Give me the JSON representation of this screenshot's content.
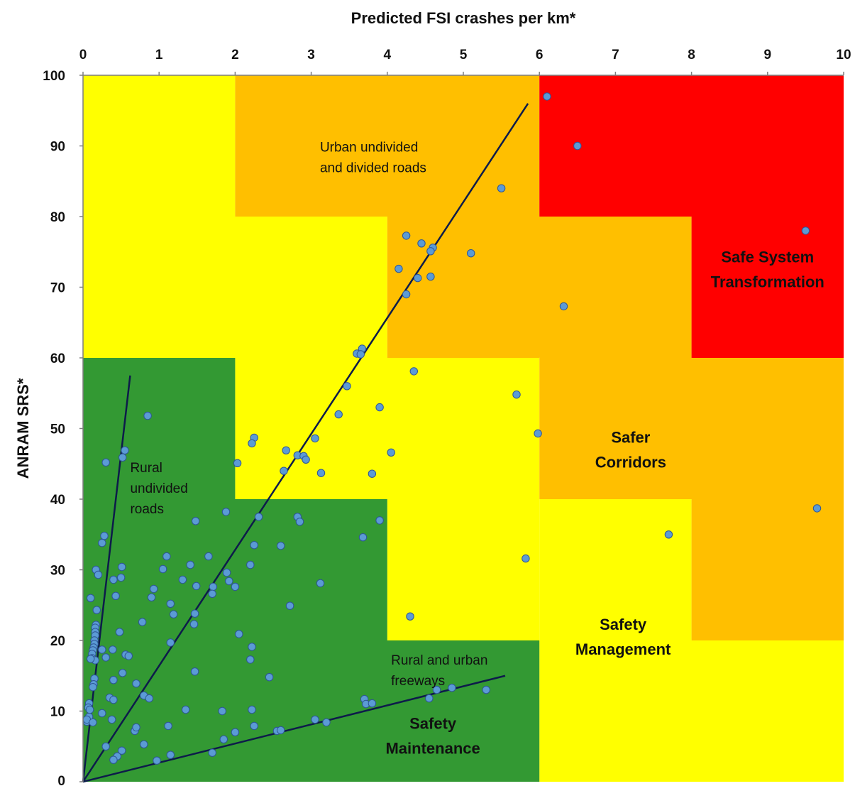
{
  "chart_data": {
    "type": "scatter",
    "x_axis": {
      "label": "Predicted FSI crashes per km*",
      "range": [
        0,
        10
      ],
      "ticks": [
        0,
        1,
        2,
        3,
        4,
        5,
        6,
        7,
        8,
        9,
        10
      ],
      "position": "top"
    },
    "y_axis": {
      "label": "ANRAM SRS*",
      "range": [
        0,
        100
      ],
      "ticks": [
        0,
        10,
        20,
        30,
        40,
        50,
        60,
        70,
        80,
        90,
        100
      ]
    },
    "grid": false,
    "legend": "none",
    "colors": {
      "green": "#339933",
      "yellow": "#ffff00",
      "orange": "#ffbf00",
      "red": "#ff0000",
      "point_fill": "#5b9bd5",
      "point_stroke": "#2e5597",
      "trend_line": "#0d1b4a"
    },
    "zones": [
      {
        "color": "yellow",
        "region": [
          [
            0,
            60
          ],
          [
            0,
            100
          ],
          [
            2,
            100
          ],
          [
            2,
            80
          ],
          [
            4,
            80
          ],
          [
            4,
            60
          ],
          [
            6,
            60
          ],
          [
            6,
            20
          ],
          [
            4,
            20
          ],
          [
            4,
            40
          ],
          [
            2,
            40
          ],
          [
            2,
            60
          ]
        ]
      },
      {
        "color": "yellow",
        "region": [
          [
            6,
            0
          ],
          [
            10,
            0
          ],
          [
            10,
            20
          ],
          [
            8,
            20
          ],
          [
            8,
            40
          ],
          [
            6,
            40
          ]
        ]
      },
      {
        "color": "orange",
        "region": [
          [
            2,
            80
          ],
          [
            2,
            100
          ],
          [
            6,
            100
          ],
          [
            6,
            60
          ],
          [
            8,
            60
          ],
          [
            8,
            80
          ],
          [
            6,
            80
          ],
          [
            6,
            60
          ],
          [
            4,
            60
          ],
          [
            4,
            80
          ]
        ]
      },
      {
        "color": "orange",
        "region": [
          [
            6,
            40
          ],
          [
            8,
            40
          ],
          [
            8,
            20
          ],
          [
            10,
            20
          ],
          [
            10,
            60
          ],
          [
            6,
            60
          ]
        ]
      },
      {
        "color": "red",
        "region": [
          [
            6,
            60
          ],
          [
            6,
            100
          ],
          [
            10,
            100
          ],
          [
            10,
            60
          ],
          [
            8,
            60
          ],
          [
            8,
            80
          ],
          [
            6,
            80
          ]
        ]
      },
      {
        "color": "green",
        "region": [
          [
            0,
            0
          ],
          [
            0,
            60
          ],
          [
            2,
            60
          ],
          [
            2,
            40
          ],
          [
            4,
            40
          ],
          [
            4,
            20
          ],
          [
            6,
            20
          ],
          [
            6,
            0
          ]
        ]
      }
    ],
    "zone_labels": [
      {
        "text_lines": [
          "Safe System",
          "Transformation"
        ],
        "x": 9.0,
        "y": 73.5
      },
      {
        "text_lines": [
          "Safer",
          "Corridors"
        ],
        "x": 7.2,
        "y": 48.0
      },
      {
        "text_lines": [
          "Safety",
          "Management"
        ],
        "x": 7.1,
        "y": 21.5
      },
      {
        "text_lines": [
          "Safety",
          "Maintenance"
        ],
        "x": 4.6,
        "y": 7.5
      }
    ],
    "trend_lines": [
      {
        "name": "Urban undivided and divided roads",
        "from": [
          0,
          0
        ],
        "to": [
          5.85,
          96
        ]
      },
      {
        "name": "Rural undivided roads",
        "from": [
          0,
          0
        ],
        "to": [
          0.62,
          57.5
        ]
      },
      {
        "name": "Rural and urban freeways",
        "from": [
          0,
          0
        ],
        "to": [
          5.55,
          15
        ]
      }
    ],
    "annotations": [
      {
        "text_lines": [
          "Urban undivided",
          "and divided roads"
        ],
        "x": 4.02,
        "y": 89.2
      },
      {
        "text_lines": [
          "Rural",
          "undivided",
          "roads"
        ],
        "x": 0.62,
        "y": 43.8
      },
      {
        "text_lines": [
          "Rural and urban",
          "freeways"
        ],
        "x": 4.05,
        "y": 16.6
      }
    ],
    "points": [
      [
        6.1,
        97
      ],
      [
        6.5,
        90
      ],
      [
        9.5,
        78
      ],
      [
        5.5,
        84
      ],
      [
        4.25,
        77.3
      ],
      [
        4.45,
        76.2
      ],
      [
        4.6,
        75.6
      ],
      [
        4.57,
        75.1
      ],
      [
        5.1,
        74.8
      ],
      [
        4.15,
        72.6
      ],
      [
        4.4,
        71.3
      ],
      [
        4.57,
        71.5
      ],
      [
        4.25,
        69
      ],
      [
        6.32,
        67.3
      ],
      [
        3.67,
        61.3
      ],
      [
        3.6,
        60.6
      ],
      [
        3.65,
        60.5
      ],
      [
        4.35,
        58.1
      ],
      [
        3.47,
        56
      ],
      [
        3.36,
        52
      ],
      [
        3.9,
        53
      ],
      [
        5.7,
        54.8
      ],
      [
        5.98,
        49.3
      ],
      [
        4.05,
        46.6
      ],
      [
        3.05,
        48.6
      ],
      [
        2.67,
        46.9
      ],
      [
        2.82,
        46.2
      ],
      [
        2.9,
        46.1
      ],
      [
        2.93,
        45.6
      ],
      [
        3.13,
        43.7
      ],
      [
        2.64,
        44
      ],
      [
        2.03,
        45.1
      ],
      [
        2.25,
        48.7
      ],
      [
        2.22,
        47.9
      ],
      [
        3.8,
        43.6
      ],
      [
        0.85,
        51.8
      ],
      [
        0.55,
        46.9
      ],
      [
        0.52,
        45.9
      ],
      [
        0.3,
        45.2
      ],
      [
        1.88,
        38.2
      ],
      [
        2.31,
        37.5
      ],
      [
        2.82,
        37.5
      ],
      [
        2.85,
        36.8
      ],
      [
        3.9,
        37
      ],
      [
        3.68,
        34.6
      ],
      [
        2.25,
        33.5
      ],
      [
        2.6,
        33.4
      ],
      [
        1.48,
        36.9
      ],
      [
        1.1,
        31.9
      ],
      [
        1.65,
        31.9
      ],
      [
        1.41,
        30.7
      ],
      [
        1.05,
        30.1
      ],
      [
        1.89,
        29.6
      ],
      [
        1.92,
        28.4
      ],
      [
        2.0,
        27.6
      ],
      [
        1.31,
        28.6
      ],
      [
        1.49,
        27.7
      ],
      [
        1.71,
        27.6
      ],
      [
        1.7,
        26.6
      ],
      [
        0.93,
        27.3
      ],
      [
        0.9,
        26.1
      ],
      [
        2.2,
        30.7
      ],
      [
        3.12,
        28.1
      ],
      [
        2.72,
        24.9
      ],
      [
        4.3,
        23.4
      ],
      [
        1.15,
        25.2
      ],
      [
        1.19,
        23.7
      ],
      [
        1.47,
        23.8
      ],
      [
        1.46,
        22.3
      ],
      [
        0.78,
        22.6
      ],
      [
        2.05,
        20.9
      ],
      [
        1.15,
        19.7
      ],
      [
        2.22,
        19.1
      ],
      [
        2.2,
        17.3
      ],
      [
        2.45,
        14.8
      ],
      [
        1.47,
        15.6
      ],
      [
        0.56,
        18
      ],
      [
        0.6,
        17.8
      ],
      [
        0.39,
        18.7
      ],
      [
        0.52,
        15.4
      ],
      [
        0.4,
        14.4
      ],
      [
        0.7,
        13.9
      ],
      [
        0.8,
        12.2
      ],
      [
        0.87,
        11.8
      ],
      [
        0.35,
        11.9
      ],
      [
        0.4,
        11.6
      ],
      [
        1.12,
        7.9
      ],
      [
        1.35,
        10.2
      ],
      [
        1.83,
        10
      ],
      [
        2.22,
        10.2
      ],
      [
        2.25,
        7.9
      ],
      [
        2.55,
        7.2
      ],
      [
        2.6,
        7.3
      ],
      [
        2.0,
        7
      ],
      [
        1.85,
        6
      ],
      [
        1.7,
        4.1
      ],
      [
        1.15,
        3.8
      ],
      [
        0.97,
        3
      ],
      [
        0.8,
        5.3
      ],
      [
        0.68,
        7.2
      ],
      [
        0.7,
        7.7
      ],
      [
        0.51,
        4.4
      ],
      [
        0.45,
        3.6
      ],
      [
        0.4,
        3.1
      ],
      [
        0.3,
        5
      ],
      [
        0.38,
        8.8
      ],
      [
        0.25,
        9.7
      ],
      [
        3.05,
        8.8
      ],
      [
        3.2,
        8.4
      ],
      [
        3.7,
        11.7
      ],
      [
        3.72,
        11
      ],
      [
        3.8,
        11.1
      ],
      [
        4.55,
        11.8
      ],
      [
        4.65,
        13
      ],
      [
        4.85,
        13.3
      ],
      [
        5.3,
        13
      ],
      [
        5.82,
        31.6
      ],
      [
        7.7,
        35
      ],
      [
        9.65,
        38.7
      ],
      [
        0.48,
        21.2
      ],
      [
        0.5,
        28.9
      ],
      [
        0.51,
        30.4
      ],
      [
        0.4,
        28.6
      ],
      [
        0.43,
        26.3
      ],
      [
        0.28,
        34.8
      ],
      [
        0.25,
        33.8
      ],
      [
        0.17,
        30
      ],
      [
        0.2,
        29.3
      ],
      [
        0.1,
        26
      ],
      [
        0.18,
        24.3
      ],
      [
        0.17,
        22.2
      ],
      [
        0.16,
        21.8
      ],
      [
        0.16,
        21.2
      ],
      [
        0.16,
        20.7
      ],
      [
        0.15,
        20
      ],
      [
        0.15,
        19.5
      ],
      [
        0.14,
        19
      ],
      [
        0.13,
        18.6
      ],
      [
        0.12,
        18.1
      ],
      [
        0.12,
        17.5
      ],
      [
        0.16,
        17.2
      ],
      [
        0.1,
        17.4
      ],
      [
        0.25,
        18.7
      ],
      [
        0.3,
        17.6
      ],
      [
        0.15,
        14.6
      ],
      [
        0.14,
        13.8
      ],
      [
        0.13,
        13.4
      ],
      [
        0.08,
        11.1
      ],
      [
        0.07,
        10.5
      ],
      [
        0.08,
        9.2
      ],
      [
        0.05,
        8.5
      ],
      [
        0.05,
        8.8
      ],
      [
        0.13,
        8.4
      ],
      [
        0.09,
        10.2
      ]
    ]
  }
}
